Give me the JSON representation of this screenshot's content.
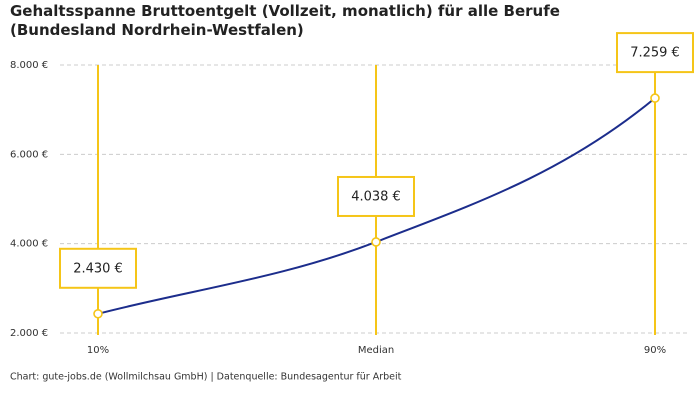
{
  "chart_data": {
    "type": "line",
    "title": "Gehaltsspanne Bruttoentgelt (Vollzeit, monatlich) für alle Berufe (Bundesland Nordrhein-Westfalen)",
    "categories": [
      "10%",
      "Median",
      "90%"
    ],
    "values": [
      2430,
      4038,
      7259
    ],
    "value_labels": [
      "2.430 €",
      "4.038 €",
      "7.259 €"
    ],
    "color": "#1c2d8c",
    "marker_color": "#f5c518",
    "ylim": [
      2000,
      8000
    ],
    "yticks": [
      {
        "value": 2000,
        "label": "2.000 €"
      },
      {
        "value": 4000,
        "label": "4.000 €"
      },
      {
        "value": 6000,
        "label": "6.000 €"
      },
      {
        "value": 8000,
        "label": "8.000 €"
      }
    ],
    "grid": true,
    "source": "Chart: gute-jobs.de (Wollmilchsau GmbH) | Datenquelle: Bundesagentur für Arbeit"
  }
}
